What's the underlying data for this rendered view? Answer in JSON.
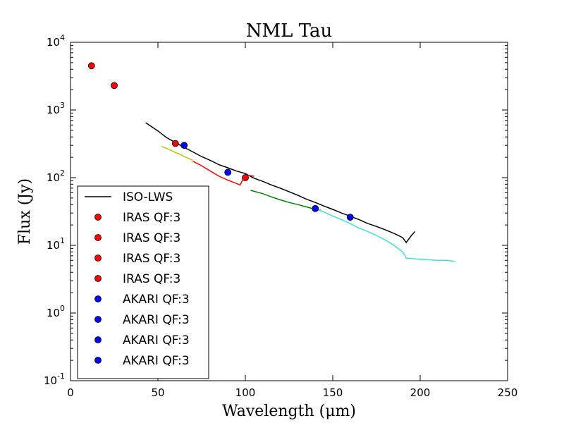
{
  "chart_data": {
    "type": "scatter",
    "title": "NML Tau",
    "xlabel": "Wavelength (μm)",
    "ylabel": "Flux (Jy)",
    "xlim": [
      0,
      250
    ],
    "ylim": [
      0.1,
      10000
    ],
    "yscale": "log",
    "xticks": [
      0,
      50,
      100,
      150,
      200,
      250
    ],
    "yticks": [
      {
        "value": 0.1,
        "base": "10",
        "exp": "-1"
      },
      {
        "value": 1,
        "base": "10",
        "exp": "0"
      },
      {
        "value": 10,
        "base": "10",
        "exp": "1"
      },
      {
        "value": 100,
        "base": "10",
        "exp": "2"
      },
      {
        "value": 1000,
        "base": "10",
        "exp": "3"
      },
      {
        "value": 10000,
        "base": "10",
        "exp": "4"
      }
    ],
    "legend_position": "lower-left",
    "series": [
      {
        "name": "ISO-LWS",
        "kind": "line",
        "color": "#000000",
        "in_legend": true,
        "x": [
          43,
          50,
          55,
          60,
          65,
          70,
          75,
          80,
          85,
          90,
          95,
          100,
          105,
          110,
          115,
          120,
          125,
          130,
          135,
          140,
          145,
          150,
          155,
          160,
          165,
          170,
          175,
          180,
          185,
          190,
          192,
          195,
          197
        ],
        "y": [
          650,
          490,
          390,
          330,
          280,
          240,
          205,
          180,
          155,
          140,
          125,
          115,
          98,
          88,
          78,
          70,
          62,
          55,
          48,
          43,
          38,
          34,
          30,
          27,
          24,
          21,
          19,
          17,
          15,
          13,
          11,
          14,
          16
        ]
      },
      {
        "name": "",
        "kind": "line",
        "color": "#bfbf00",
        "in_legend": false,
        "x": [
          52,
          55,
          58,
          60,
          63,
          65,
          68,
          70
        ],
        "y": [
          290,
          270,
          250,
          235,
          220,
          205,
          190,
          180
        ]
      },
      {
        "name": "",
        "kind": "line",
        "color": "#ff0000",
        "in_legend": false,
        "x": [
          70,
          75,
          80,
          85,
          90,
          95,
          97,
          100,
          105
        ],
        "y": [
          175,
          150,
          125,
          105,
          92,
          82,
          78,
          110,
          105
        ]
      },
      {
        "name": "",
        "kind": "line",
        "color": "#008000",
        "in_legend": false,
        "x": [
          103,
          110,
          115,
          120,
          125,
          130,
          135,
          140,
          143
        ],
        "y": [
          65,
          58,
          52,
          47,
          43,
          40,
          37,
          34,
          33
        ]
      },
      {
        "name": "",
        "kind": "line",
        "color": "#40e0d0",
        "in_legend": false,
        "x": [
          140,
          145,
          150,
          155,
          160,
          165,
          170,
          175,
          180,
          185,
          190,
          192,
          200,
          210,
          215,
          220
        ],
        "y": [
          35,
          31,
          27,
          24,
          21,
          18,
          16,
          14,
          12,
          10,
          8,
          6.5,
          6.2,
          6,
          6,
          5.8
        ]
      },
      {
        "name": "IRAS QF:3",
        "kind": "points",
        "color": "#ff0000",
        "in_legend": true,
        "x": [
          12
        ],
        "y": [
          4500
        ]
      },
      {
        "name": "IRAS QF:3",
        "kind": "points",
        "color": "#ff0000",
        "in_legend": true,
        "x": [
          25
        ],
        "y": [
          2300
        ]
      },
      {
        "name": "IRAS QF:3",
        "kind": "points",
        "color": "#ff0000",
        "in_legend": true,
        "x": [
          60
        ],
        "y": [
          320
        ]
      },
      {
        "name": "IRAS QF:3",
        "kind": "points",
        "color": "#ff0000",
        "in_legend": true,
        "x": [
          100
        ],
        "y": [
          100
        ]
      },
      {
        "name": "AKARI QF:3",
        "kind": "points",
        "color": "#0000ff",
        "in_legend": true,
        "x": [
          65
        ],
        "y": [
          300
        ]
      },
      {
        "name": "AKARI QF:3",
        "kind": "points",
        "color": "#0000ff",
        "in_legend": true,
        "x": [
          90
        ],
        "y": [
          120
        ]
      },
      {
        "name": "AKARI QF:3",
        "kind": "points",
        "color": "#0000ff",
        "in_legend": true,
        "x": [
          140
        ],
        "y": [
          35
        ]
      },
      {
        "name": "AKARI QF:3",
        "kind": "points",
        "color": "#0000ff",
        "in_legend": true,
        "x": [
          160
        ],
        "y": [
          26
        ]
      }
    ]
  }
}
